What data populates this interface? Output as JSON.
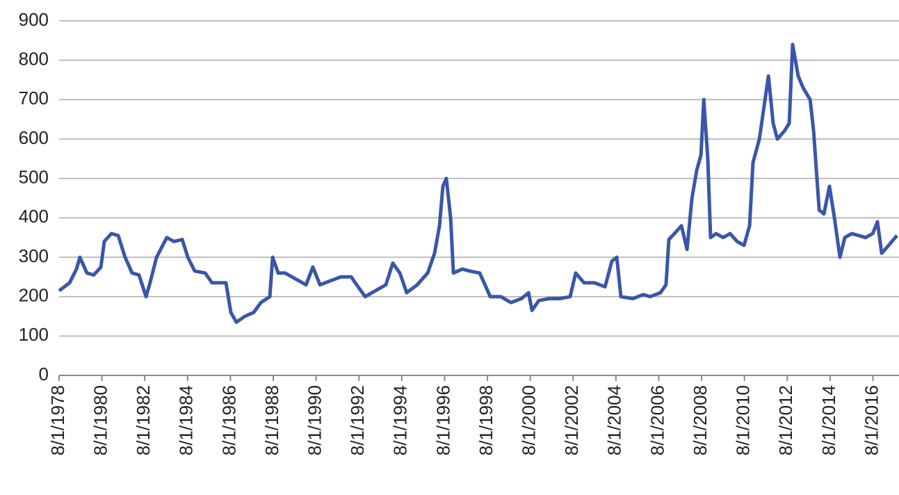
{
  "chart_data": {
    "type": "line",
    "x": [
      1978.58,
      1979.07,
      1979.39,
      1979.55,
      1979.88,
      1980.2,
      1980.53,
      1980.69,
      1981.02,
      1981.34,
      1981.66,
      1981.99,
      1982.31,
      1982.64,
      1982.8,
      1983.13,
      1983.61,
      1983.94,
      1984.33,
      1984.59,
      1984.91,
      1985.4,
      1985.72,
      1986.37,
      1986.6,
      1986.86,
      1987.25,
      1987.67,
      1988.0,
      1988.42,
      1988.55,
      1988.81,
      1989.13,
      1989.62,
      1990.11,
      1990.43,
      1990.76,
      1991.24,
      1991.73,
      1992.22,
      1992.54,
      1992.87,
      1993.35,
      1993.84,
      1994.16,
      1994.49,
      1994.81,
      1995.3,
      1995.79,
      1996.11,
      1996.34,
      1996.5,
      1996.66,
      1996.86,
      1996.99,
      1997.41,
      1997.74,
      1998.22,
      1998.71,
      1999.2,
      1999.68,
      2000.17,
      2000.5,
      2000.66,
      2000.98,
      2001.47,
      2001.96,
      2002.44,
      2002.7,
      2003.09,
      2003.58,
      2004.07,
      2004.39,
      2004.62,
      2004.81,
      2005.37,
      2005.85,
      2006.18,
      2006.66,
      2006.92,
      2007.05,
      2007.31,
      2007.64,
      2007.9,
      2008.13,
      2008.35,
      2008.55,
      2008.68,
      2008.87,
      2009.0,
      2009.26,
      2009.59,
      2009.91,
      2010.24,
      2010.56,
      2010.82,
      2010.98,
      2011.28,
      2011.54,
      2011.7,
      2011.92,
      2012.12,
      2012.44,
      2012.67,
      2012.83,
      2013.09,
      2013.32,
      2013.65,
      2013.81,
      2014.07,
      2014.29,
      2014.55,
      2014.78,
      2015.04,
      2015.27,
      2015.59,
      2015.92,
      2016.24,
      2016.57,
      2016.79,
      2016.99,
      2017.31,
      2017.7
    ],
    "series": [
      {
        "color": "#3a56a8",
        "values": [
          215,
          235,
          270,
          300,
          260,
          255,
          275,
          340,
          360,
          355,
          300,
          260,
          255,
          200,
          230,
          300,
          350,
          340,
          345,
          300,
          265,
          260,
          235,
          235,
          160,
          135,
          150,
          160,
          185,
          200,
          300,
          260,
          260,
          245,
          230,
          275,
          230,
          240,
          250,
          250,
          225,
          200,
          215,
          230,
          285,
          260,
          210,
          230,
          260,
          310,
          380,
          480,
          500,
          400,
          260,
          270,
          265,
          260,
          200,
          200,
          185,
          195,
          210,
          165,
          190,
          195,
          195,
          200,
          260,
          235,
          235,
          225,
          290,
          300,
          200,
          195,
          205,
          200,
          210,
          230,
          345,
          360,
          380,
          320,
          450,
          520,
          560,
          700,
          550,
          350,
          360,
          350,
          360,
          340,
          330,
          380,
          540,
          600,
          700,
          760,
          640,
          600,
          620,
          640,
          840,
          760,
          730,
          700,
          620,
          420,
          410,
          480,
          400,
          300,
          350,
          360,
          355,
          350,
          360,
          390,
          310,
          330,
          355
        ]
      }
    ],
    "xlim": [
      1978.58,
      2017.7
    ],
    "xticks": [
      {
        "value": 1978.58,
        "label": "8/1/1978"
      },
      {
        "value": 1980.58,
        "label": "8/1/1980"
      },
      {
        "value": 1982.58,
        "label": "8/1/1982"
      },
      {
        "value": 1984.58,
        "label": "8/1/1984"
      },
      {
        "value": 1986.58,
        "label": "8/1/1986"
      },
      {
        "value": 1988.58,
        "label": "8/1/1988"
      },
      {
        "value": 1990.58,
        "label": "8/1/1990"
      },
      {
        "value": 1992.58,
        "label": "8/1/1992"
      },
      {
        "value": 1994.58,
        "label": "8/1/1994"
      },
      {
        "value": 1996.58,
        "label": "8/1/1996"
      },
      {
        "value": 1998.58,
        "label": "8/1/1998"
      },
      {
        "value": 2000.58,
        "label": "8/1/2000"
      },
      {
        "value": 2002.58,
        "label": "8/1/2002"
      },
      {
        "value": 2004.58,
        "label": "8/1/2004"
      },
      {
        "value": 2006.58,
        "label": "8/1/2006"
      },
      {
        "value": 2008.58,
        "label": "8/1/2008"
      },
      {
        "value": 2010.58,
        "label": "8/1/2010"
      },
      {
        "value": 2012.58,
        "label": "8/1/2012"
      },
      {
        "value": 2014.58,
        "label": "8/1/2014"
      },
      {
        "value": 2016.58,
        "label": "8/1/2016"
      }
    ],
    "ylim": [
      0,
      900
    ],
    "yticks": [
      0,
      100,
      200,
      300,
      400,
      500,
      600,
      700,
      800,
      900
    ],
    "grid": true
  }
}
